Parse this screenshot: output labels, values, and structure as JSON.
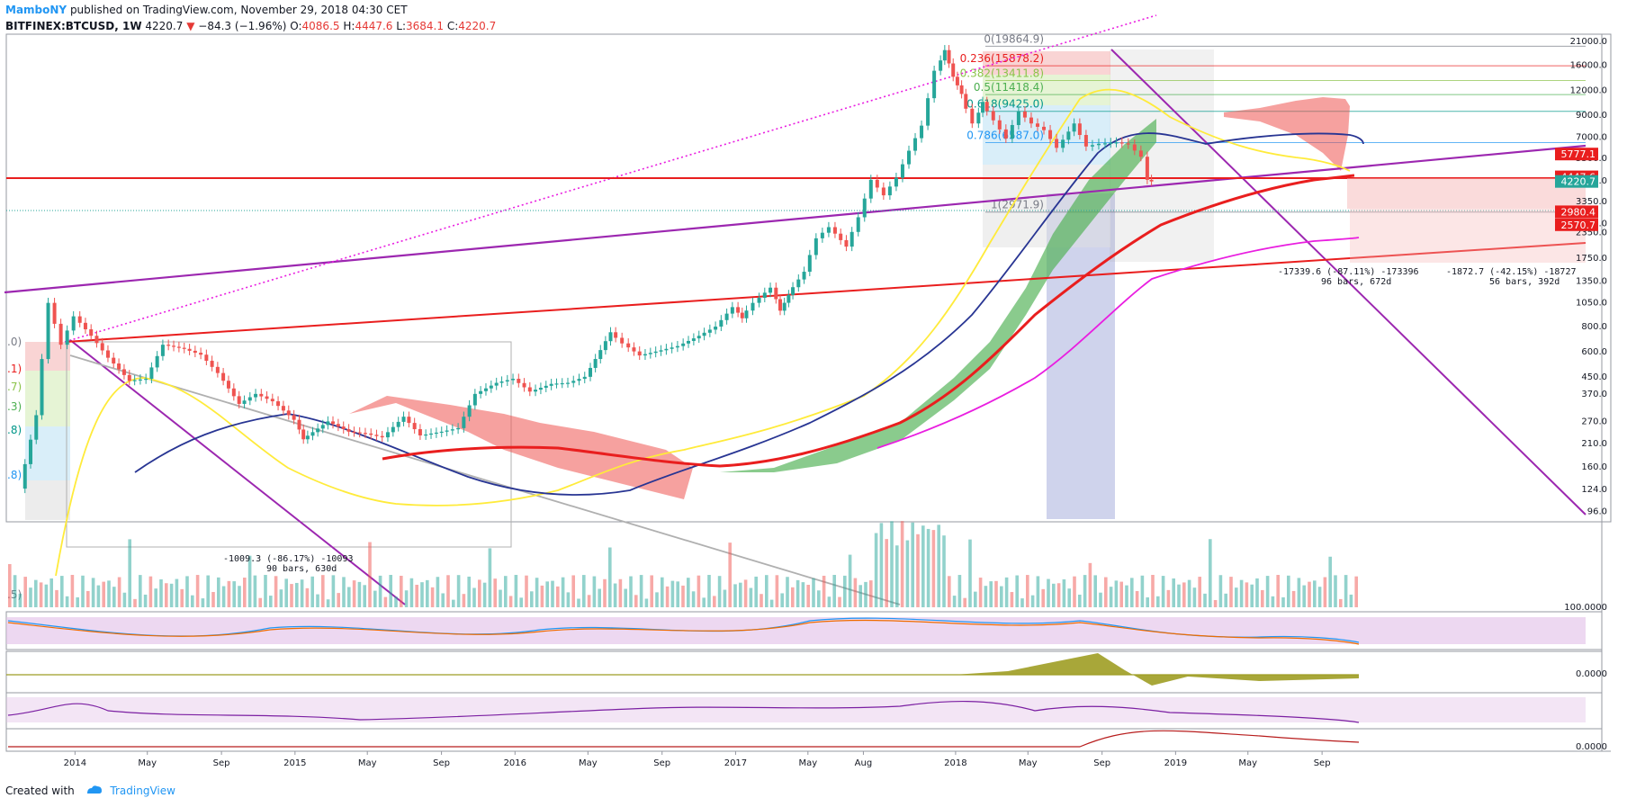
{
  "header": {
    "author": "MamboNY",
    "published": "published on TradingView.com, November 29, 2018 04:30 CET",
    "symbol": "BITFINEX:BTCUSD, 1W",
    "last": "4220.7",
    "arrow": "▼",
    "change": "−84.3 (−1.96%)",
    "o_label": "O:",
    "o_value": "4086.5",
    "h_label": "H:",
    "h_value": "4447.6",
    "l_label": "L:",
    "l_value": "3684.1",
    "c_label": "C:",
    "c_value": "4220.7"
  },
  "footer": {
    "created_with": "Created with",
    "brand": "TradingView"
  },
  "colors": {
    "up": "#26a69a",
    "down": "#ef5350",
    "resistance": "#e91e1e",
    "channel": "#9c27b0",
    "ema_yellow": "#ffeb3b",
    "ema_blue": "#283593",
    "ema_magenta": "#e91ee0",
    "cloud_green": "#4caf50",
    "cloud_red": "#ef5350"
  },
  "chart_data": {
    "type": "candlestick",
    "symbol": "BITFINEX:BTCUSD",
    "interval": "1W",
    "scale": "log",
    "ylim": [
      90,
      21000
    ],
    "y_ticks": [
      21000,
      16000,
      12000,
      9000,
      7000,
      5500,
      4250,
      3350,
      2600,
      2350,
      1750,
      1350,
      1050,
      800,
      600,
      450,
      370,
      270,
      210,
      160,
      124,
      96
    ],
    "y_tick_labels": [
      "21000.0",
      "16000.0",
      "12000.0",
      "9000.0",
      "7000.0",
      "5500.0",
      "4250.0",
      "3350.0",
      "2600.0",
      "2350.0",
      "1750.0",
      "1350.0",
      "1050.0",
      "800.0",
      "600.0",
      "450.0",
      "370.0",
      "270.0",
      "210.0",
      "160.0",
      "124.0",
      "96.0"
    ],
    "x_tick_labels": [
      "2014",
      "May",
      "Sep",
      "2015",
      "May",
      "Sep",
      "2016",
      "May",
      "Sep",
      "2017",
      "May",
      "Aug",
      "2018",
      "May",
      "Sep",
      "2019",
      "May",
      "Sep"
    ],
    "x_tick_dates": [
      "2014-01-01",
      "2014-05-01",
      "2014-09-01",
      "2015-01-01",
      "2015-05-01",
      "2015-09-01",
      "2016-01-01",
      "2016-05-01",
      "2016-09-01",
      "2017-01-01",
      "2017-05-01",
      "2017-08-01",
      "2018-01-01",
      "2018-05-01",
      "2018-09-01",
      "2019-01-01",
      "2019-05-01",
      "2019-09-01"
    ],
    "price_badges": [
      {
        "label": "5777.1",
        "value": 5777.1,
        "color": "#e91e1e"
      },
      {
        "label": "4447.6",
        "value": 4447.6,
        "color": "#e91e1e"
      },
      {
        "label": "4220.7",
        "value": 4220.7,
        "color": "#26a69a"
      },
      {
        "label": "2980.4",
        "value": 2980.4,
        "color": "#e91e1e"
      },
      {
        "label": "2570.7",
        "value": 2570.7,
        "color": "#e91e1e"
      }
    ],
    "fib_levels": [
      {
        "ratio": "0",
        "label": "0(19864.9)",
        "price": 19864.9,
        "color": "#787b86"
      },
      {
        "ratio": "0.236",
        "label": "0.236(15878.2)",
        "price": 15878.2,
        "color": "#e91e1e"
      },
      {
        "ratio": "0.382",
        "label": "0.382(13411.8)",
        "price": 13411.8,
        "color": "#8bc34a"
      },
      {
        "ratio": "0.5",
        "label": "0.5(11418.4)",
        "price": 11418.4,
        "color": "#4caf50"
      },
      {
        "ratio": "0.618",
        "label": "0.618(9425.0)",
        "price": 9425.0,
        "color": "#009688"
      },
      {
        "ratio": "0.786",
        "label": "0.786(6587.0)",
        "price": 6587.0,
        "color": "#2196f3"
      },
      {
        "ratio": "1",
        "label": "1(2971.9)",
        "price": 2971.9,
        "color": "#787b86"
      }
    ],
    "left_fib_labels": [
      ".0)",
      ".1)",
      ".7)",
      ".3)",
      ".8)",
      ".8)",
      ".5)"
    ],
    "measure_annotations": [
      {
        "line1": "-1009.3 (-86.17%) -10093",
        "line2": "90 bars, 630d"
      },
      {
        "line1": "-17339.6 (-87.11%) -173396",
        "line2": "96 bars, 672d"
      },
      {
        "line1": "-1872.7 (-42.15%) -18727",
        "line2": "56 bars, 392d"
      }
    ],
    "weekly_close": [
      {
        "x": "2013-10-07",
        "y": 125
      },
      {
        "x": "2013-11-04",
        "y": 290
      },
      {
        "x": "2013-11-25",
        "y": 1050
      },
      {
        "x": "2013-12-16",
        "y": 650
      },
      {
        "x": "2014-01-06",
        "y": 900
      },
      {
        "x": "2014-02-03",
        "y": 720
      },
      {
        "x": "2014-03-03",
        "y": 560
      },
      {
        "x": "2014-04-07",
        "y": 430
      },
      {
        "x": "2014-05-05",
        "y": 440
      },
      {
        "x": "2014-06-02",
        "y": 650
      },
      {
        "x": "2014-07-07",
        "y": 620
      },
      {
        "x": "2014-08-04",
        "y": 580
      },
      {
        "x": "2014-09-01",
        "y": 470
      },
      {
        "x": "2014-10-06",
        "y": 330
      },
      {
        "x": "2014-11-03",
        "y": 370
      },
      {
        "x": "2014-12-01",
        "y": 340
      },
      {
        "x": "2015-01-05",
        "y": 275
      },
      {
        "x": "2015-01-19",
        "y": 220
      },
      {
        "x": "2015-03-02",
        "y": 270
      },
      {
        "x": "2015-04-06",
        "y": 240
      },
      {
        "x": "2015-05-04",
        "y": 235
      },
      {
        "x": "2015-06-01",
        "y": 225
      },
      {
        "x": "2015-07-06",
        "y": 285
      },
      {
        "x": "2015-08-03",
        "y": 230
      },
      {
        "x": "2015-09-07",
        "y": 240
      },
      {
        "x": "2015-10-05",
        "y": 250
      },
      {
        "x": "2015-11-02",
        "y": 370
      },
      {
        "x": "2015-12-07",
        "y": 420
      },
      {
        "x": "2016-01-04",
        "y": 440
      },
      {
        "x": "2016-02-01",
        "y": 380
      },
      {
        "x": "2016-03-07",
        "y": 415
      },
      {
        "x": "2016-04-04",
        "y": 420
      },
      {
        "x": "2016-05-02",
        "y": 450
      },
      {
        "x": "2016-06-13",
        "y": 750
      },
      {
        "x": "2016-07-04",
        "y": 660
      },
      {
        "x": "2016-08-01",
        "y": 575
      },
      {
        "x": "2016-09-05",
        "y": 610
      },
      {
        "x": "2016-10-03",
        "y": 640
      },
      {
        "x": "2016-11-07",
        "y": 720
      },
      {
        "x": "2016-12-05",
        "y": 800
      },
      {
        "x": "2017-01-02",
        "y": 1000
      },
      {
        "x": "2017-01-16",
        "y": 880
      },
      {
        "x": "2017-02-06",
        "y": 1050
      },
      {
        "x": "2017-03-06",
        "y": 1250
      },
      {
        "x": "2017-03-20",
        "y": 960
      },
      {
        "x": "2017-04-03",
        "y": 1150
      },
      {
        "x": "2017-05-01",
        "y": 1500
      },
      {
        "x": "2017-05-22",
        "y": 2200
      },
      {
        "x": "2017-06-12",
        "y": 2500
      },
      {
        "x": "2017-07-10",
        "y": 2000
      },
      {
        "x": "2017-07-31",
        "y": 2800
      },
      {
        "x": "2017-08-21",
        "y": 4300
      },
      {
        "x": "2017-09-11",
        "y": 3600
      },
      {
        "x": "2017-10-02",
        "y": 4400
      },
      {
        "x": "2017-10-23",
        "y": 6000
      },
      {
        "x": "2017-11-13",
        "y": 8000
      },
      {
        "x": "2017-12-04",
        "y": 15000
      },
      {
        "x": "2017-12-18",
        "y": 19000
      },
      {
        "x": "2018-01-01",
        "y": 14000
      },
      {
        "x": "2018-01-15",
        "y": 11500
      },
      {
        "x": "2018-02-05",
        "y": 8200
      },
      {
        "x": "2018-02-19",
        "y": 10500
      },
      {
        "x": "2018-03-12",
        "y": 8500
      },
      {
        "x": "2018-04-02",
        "y": 6900
      },
      {
        "x": "2018-04-23",
        "y": 9400
      },
      {
        "x": "2018-05-14",
        "y": 8200
      },
      {
        "x": "2018-06-04",
        "y": 7600
      },
      {
        "x": "2018-06-25",
        "y": 6200
      },
      {
        "x": "2018-07-23",
        "y": 8200
      },
      {
        "x": "2018-08-13",
        "y": 6300
      },
      {
        "x": "2018-09-03",
        "y": 6500
      },
      {
        "x": "2018-10-01",
        "y": 6600
      },
      {
        "x": "2018-10-22",
        "y": 6450
      },
      {
        "x": "2018-11-12",
        "y": 5600
      },
      {
        "x": "2018-11-19",
        "y": 4300
      },
      {
        "x": "2018-11-26",
        "y": 4220.7
      }
    ],
    "oscillator_panels": [
      {
        "name": "stoch",
        "tick_label": "100.0000"
      },
      {
        "name": "awesome",
        "tick_label": "0.0000"
      },
      {
        "name": "rsi",
        "tick_label": ""
      },
      {
        "name": "macd",
        "tick_label": "0.0000"
      }
    ]
  }
}
